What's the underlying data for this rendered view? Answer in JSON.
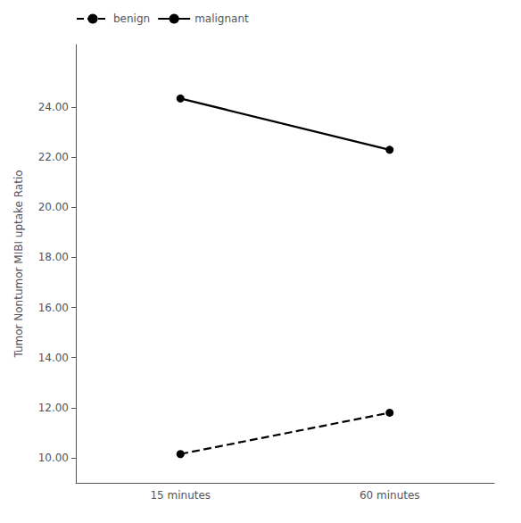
{
  "chart_data": {
    "type": "line",
    "categories": [
      "15 minutes",
      "60 minutes"
    ],
    "series": [
      {
        "name": "malignant",
        "color": "#000000",
        "marker": "circle",
        "line_style": "solid",
        "values": [
          24.35,
          22.3
        ]
      },
      {
        "name": "benign",
        "color": "#000000",
        "marker": "circle",
        "line_style": "dashed",
        "values": [
          10.15,
          11.8
        ]
      }
    ],
    "ylabel": "Tumor Nontumor MIBI uptake Ratio",
    "ylim": [
      9.0,
      26.5
    ],
    "yticks": [
      {
        "value": 10,
        "label": "10.00"
      },
      {
        "value": 12,
        "label": "12.00"
      },
      {
        "value": 14,
        "label": "14.00"
      },
      {
        "value": 16,
        "label": "16.00"
      },
      {
        "value": 18,
        "label": "18.00"
      },
      {
        "value": 20,
        "label": "20.00"
      },
      {
        "value": 22,
        "label": "22.00"
      },
      {
        "value": 24,
        "label": "24.00"
      }
    ],
    "grid": false,
    "legend": "upper left"
  }
}
